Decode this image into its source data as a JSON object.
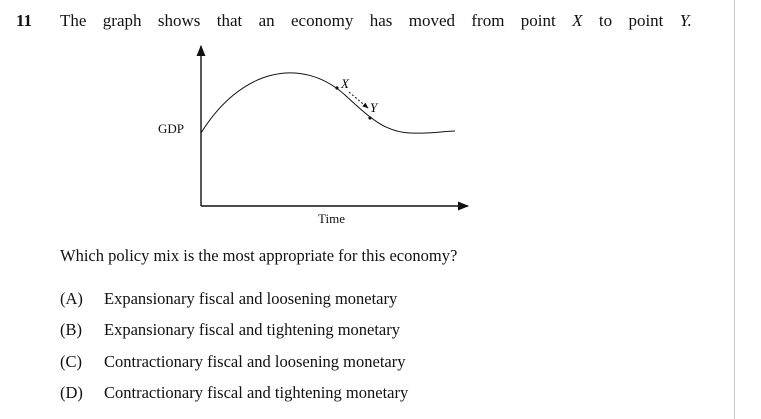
{
  "question": {
    "number": "11",
    "stem_words": [
      "The",
      "graph",
      "shows",
      "that",
      "an",
      "economy",
      "has",
      "moved",
      "from",
      "point",
      "X",
      "to",
      "point",
      "Y."
    ],
    "italic_words": [
      "X",
      "Y."
    ],
    "prompt": "Which policy mix is the most appropriate for this economy?"
  },
  "graph": {
    "y_axis_label": "GDP",
    "x_axis_label": "Time",
    "point_x_label": "X",
    "point_y_label": "Y"
  },
  "options": [
    {
      "label": "(A)",
      "text": "Expansionary fiscal and loosening monetary"
    },
    {
      "label": "(B)",
      "text": "Expansionary fiscal and tightening monetary"
    },
    {
      "label": "(C)",
      "text": "Contractionary fiscal and loosening monetary"
    },
    {
      "label": "(D)",
      "text": "Contractionary fiscal and tightening monetary"
    }
  ]
}
